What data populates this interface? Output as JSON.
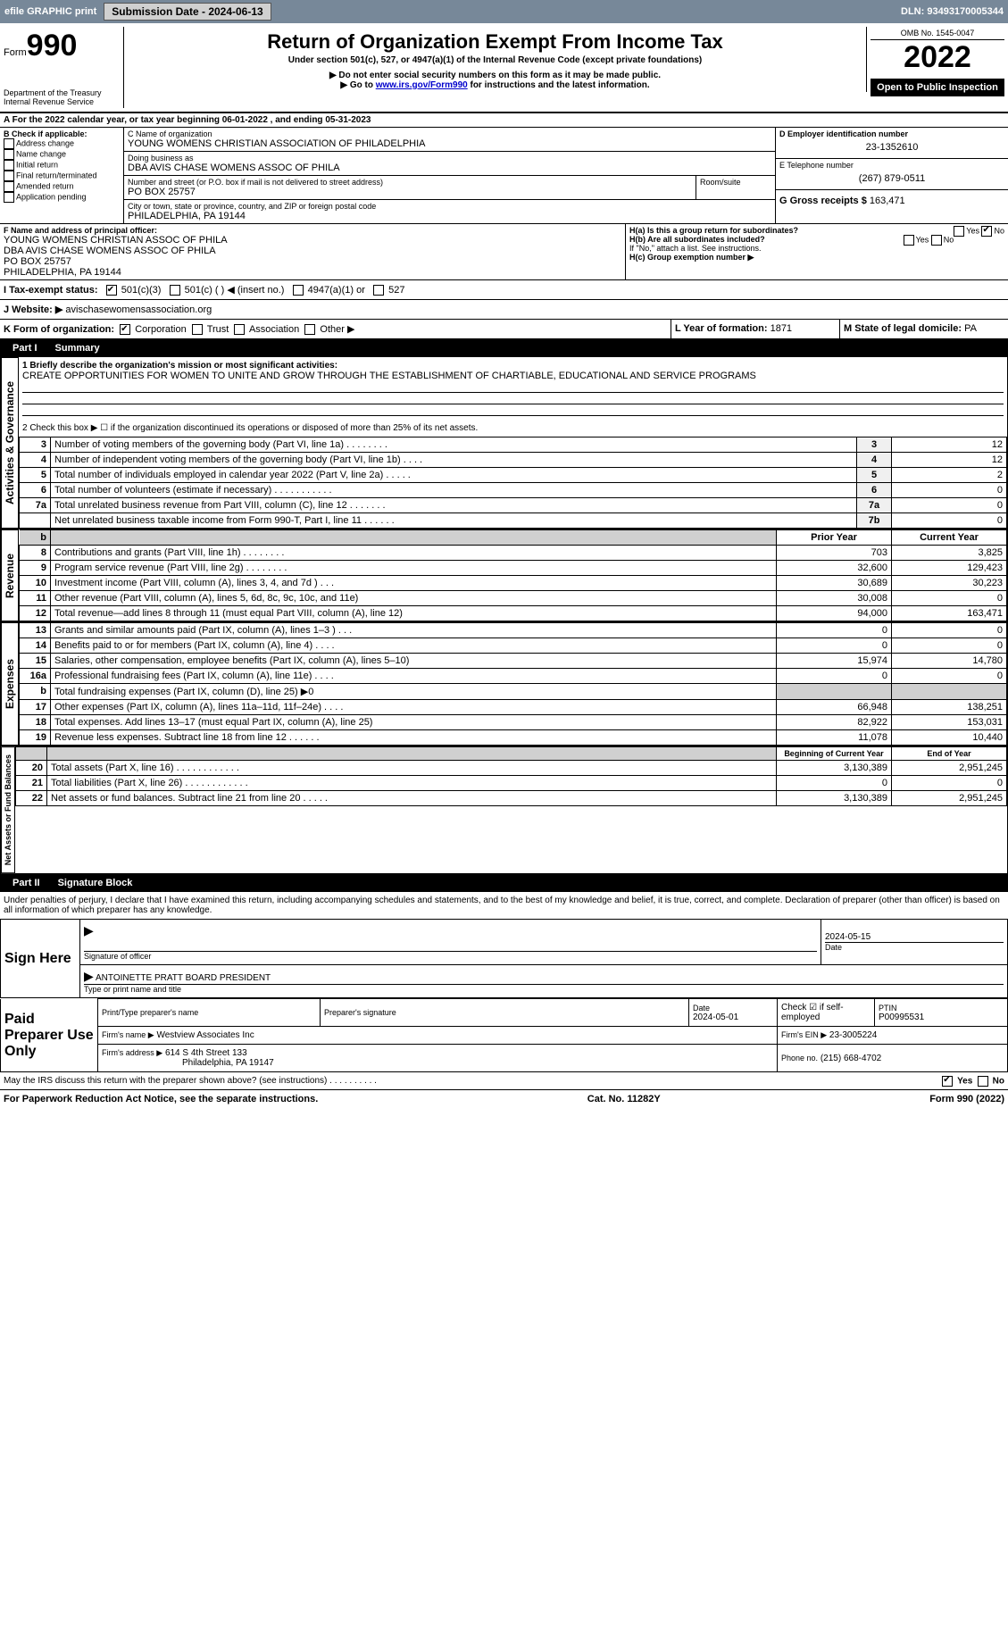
{
  "top_bar": {
    "efile": "efile GRAPHIC print",
    "submission_btn": "Submission Date - 2024-06-13",
    "dln": "DLN: 93493170005344"
  },
  "header": {
    "form_word": "Form",
    "form_num": "990",
    "title": "Return of Organization Exempt From Income Tax",
    "sub1": "Under section 501(c), 527, or 4947(a)(1) of the Internal Revenue Code (except private foundations)",
    "sub2": "▶ Do not enter social security numbers on this form as it may be made public.",
    "sub3_pre": "▶ Go to ",
    "sub3_link": "www.irs.gov/Form990",
    "sub3_post": " for instructions and the latest information.",
    "dept": "Department of the Treasury",
    "irs": "Internal Revenue Service",
    "omb": "OMB No. 1545-0047",
    "year": "2022",
    "open": "Open to Public Inspection"
  },
  "period": {
    "line_a": "A For the 2022 calendar year, or tax year beginning 06-01-2022     , and ending 05-31-2023"
  },
  "box_b": {
    "title": "B Check if applicable:",
    "opts": [
      "Address change",
      "Name change",
      "Initial return",
      "Final return/terminated",
      "Amended return",
      "Application pending"
    ]
  },
  "box_c": {
    "label_c": "C Name of organization",
    "org": "YOUNG WOMENS CHRISTIAN ASSOCIATION OF PHILADELPHIA",
    "dba_label": "Doing business as",
    "dba": "DBA AVIS CHASE WOMENS ASSOC OF PHILA",
    "addr_label": "Number and street (or P.O. box if mail is not delivered to street address)",
    "room_label": "Room/suite",
    "addr": "PO BOX 25757",
    "city_label": "City or town, state or province, country, and ZIP or foreign postal code",
    "city": "PHILADELPHIA, PA  19144"
  },
  "box_d": {
    "label": "D Employer identification number",
    "val": "23-1352610"
  },
  "box_e": {
    "label": "E Telephone number",
    "val": "(267) 879-0511"
  },
  "box_g": {
    "label": "G Gross receipts $",
    "val": "163,471"
  },
  "box_f": {
    "label": "F  Name and address of principal officer:",
    "l1": "YOUNG WOMENS CHRISTIAN ASSOC OF PHILA",
    "l2": "DBA AVIS CHASE WOMENS ASSOC OF PHILA",
    "l3": "PO BOX 25757",
    "l4": "PHILADELPHIA, PA  19144"
  },
  "box_h": {
    "ha": "H(a)  Is this a group return for subordinates?",
    "hb": "H(b)  Are all subordinates included?",
    "hb_note": "If \"No,\" attach a list. See instructions.",
    "hc": "H(c)  Group exemption number ▶",
    "yes": "Yes",
    "no": "No"
  },
  "box_i": {
    "label": "I  Tax-exempt status:",
    "o1": "501(c)(3)",
    "o2": "501(c) (   ) ◀ (insert no.)",
    "o3": "4947(a)(1) or",
    "o4": "527"
  },
  "box_j": {
    "label": "J  Website: ▶",
    "val": " avischasewomensassociation.org"
  },
  "box_k": {
    "label": "K Form of organization:",
    "o1": "Corporation",
    "o2": "Trust",
    "o3": "Association",
    "o4": "Other ▶"
  },
  "box_l": {
    "label": "L Year of formation:",
    "val": "1871"
  },
  "box_m": {
    "label": "M State of legal domicile:",
    "val": "PA"
  },
  "part1": {
    "title": "Part I",
    "name": "Summary",
    "q1": "1  Briefly describe the organization's mission or most significant activities:",
    "q1_ans": "CREATE OPPORTUNITIES FOR WOMEN TO UNITE AND GROW THROUGH THE ESTABLISHMENT OF CHARTIABLE, EDUCATIONAL AND SERVICE PROGRAMS",
    "q2": "2  Check this box ▶ ☐  if the organization discontinued its operations or disposed of more than 25% of its net assets.",
    "rows_top": [
      {
        "n": "3",
        "d": "Number of voting members of the governing body (Part VI, line 1a)   .    .    .    .    .    .    .    .",
        "b": "3",
        "v": "12"
      },
      {
        "n": "4",
        "d": "Number of independent voting members of the governing body (Part VI, line 1b)   .    .    .    .",
        "b": "4",
        "v": "12"
      },
      {
        "n": "5",
        "d": "Total number of individuals employed in calendar year 2022 (Part V, line 2a)   .    .    .    .    .",
        "b": "5",
        "v": "2"
      },
      {
        "n": "6",
        "d": "Total number of volunteers (estimate if necessary)    .    .    .    .    .    .    .    .    .    .    .",
        "b": "6",
        "v": "0"
      },
      {
        "n": "7a",
        "d": "Total unrelated business revenue from Part VIII, column (C), line 12   .    .    .    .    .    .    .",
        "b": "7a",
        "v": "0"
      },
      {
        "n": "",
        "d": "Net unrelated business taxable income from Form 990-T, Part I, line 11   .    .    .    .    .    .",
        "b": "7b",
        "v": "0"
      }
    ],
    "col_prior": "Prior Year",
    "col_current": "Current Year",
    "rev_rows": [
      {
        "n": "8",
        "d": "Contributions and grants (Part VIII, line 1h)   .    .    .    .    .    .    .    .",
        "p": "703",
        "c": "3,825"
      },
      {
        "n": "9",
        "d": "Program service revenue (Part VIII, line 2g)   .    .    .    .    .    .    .    .",
        "p": "32,600",
        "c": "129,423"
      },
      {
        "n": "10",
        "d": "Investment income (Part VIII, column (A), lines 3, 4, and 7d )   .    .    .",
        "p": "30,689",
        "c": "30,223"
      },
      {
        "n": "11",
        "d": "Other revenue (Part VIII, column (A), lines 5, 6d, 8c, 9c, 10c, and 11e)",
        "p": "30,008",
        "c": "0"
      },
      {
        "n": "12",
        "d": "Total revenue—add lines 8 through 11 (must equal Part VIII, column (A), line 12)",
        "p": "94,000",
        "c": "163,471"
      }
    ],
    "exp_rows": [
      {
        "n": "13",
        "d": "Grants and similar amounts paid (Part IX, column (A), lines 1–3 )   .    .    .",
        "p": "0",
        "c": "0"
      },
      {
        "n": "14",
        "d": "Benefits paid to or for members (Part IX, column (A), line 4)   .    .    .    .",
        "p": "0",
        "c": "0"
      },
      {
        "n": "15",
        "d": "Salaries, other compensation, employee benefits (Part IX, column (A), lines 5–10)",
        "p": "15,974",
        "c": "14,780"
      },
      {
        "n": "16a",
        "d": "Professional fundraising fees (Part IX, column (A), line 11e)   .    .    .    .",
        "p": "0",
        "c": "0"
      },
      {
        "n": "b",
        "d": "Total fundraising expenses (Part IX, column (D), line 25) ▶0",
        "p": "",
        "c": "",
        "shade": true
      },
      {
        "n": "17",
        "d": "Other expenses (Part IX, column (A), lines 11a–11d, 11f–24e)   .    .    .    .",
        "p": "66,948",
        "c": "138,251"
      },
      {
        "n": "18",
        "d": "Total expenses. Add lines 13–17 (must equal Part IX, column (A), line 25)",
        "p": "82,922",
        "c": "153,031"
      },
      {
        "n": "19",
        "d": "Revenue less expenses. Subtract line 18 from line 12   .    .    .    .    .    .",
        "p": "11,078",
        "c": "10,440"
      }
    ],
    "col_begin": "Beginning of Current Year",
    "col_end": "End of Year",
    "net_rows": [
      {
        "n": "20",
        "d": "Total assets (Part X, line 16)   .    .    .    .    .    .    .    .    .    .    .    .",
        "p": "3,130,389",
        "c": "2,951,245"
      },
      {
        "n": "21",
        "d": "Total liabilities (Part X, line 26)   .    .    .    .    .    .    .    .    .    .    .    .",
        "p": "0",
        "c": "0"
      },
      {
        "n": "22",
        "d": "Net assets or fund balances. Subtract line 21 from line 20   .    .    .    .    .",
        "p": "3,130,389",
        "c": "2,951,245"
      }
    ],
    "vlab_gov": "Activities & Governance",
    "vlab_rev": "Revenue",
    "vlab_exp": "Expenses",
    "vlab_net": "Net Assets or Fund Balances"
  },
  "part2": {
    "title": "Part II",
    "name": "Signature Block",
    "decl": "Under penalties of perjury, I declare that I have examined this return, including accompanying schedules and statements, and to the best of my knowledge and belief, it is true, correct, and complete. Declaration of preparer (other than officer) is based on all information of which preparer has any knowledge.",
    "sign_here": "Sign Here",
    "sig_officer": "Signature of officer",
    "date": "Date",
    "date_val": "2024-05-15",
    "name_title": "ANTOINETTE PRATT  BOARD PRESIDENT",
    "type_name": "Type or print name and title",
    "paid": "Paid Preparer Use Only",
    "prep_name_lbl": "Print/Type preparer's name",
    "prep_sig_lbl": "Preparer's signature",
    "prep_date_lbl": "Date",
    "prep_date_val": "2024-05-01",
    "check_if": "Check ☑ if self-employed",
    "ptin_lbl": "PTIN",
    "ptin_val": "P00995531",
    "firm_name_lbl": "Firm's name     ▶",
    "firm_name": "Westview Associates Inc",
    "firm_ein_lbl": "Firm's EIN ▶",
    "firm_ein": "23-3005224",
    "firm_addr_lbl": "Firm's address ▶",
    "firm_addr1": "614 S 4th Street 133",
    "firm_addr2": "Philadelphia, PA  19147",
    "phone_lbl": "Phone no.",
    "phone": "(215) 668-4702",
    "may_irs": "May the IRS discuss this return with the preparer shown above? (see instructions)   .    .    .    .    .    .    .    .    .    .",
    "yes": "Yes",
    "no": "No"
  },
  "footer": {
    "left": "For Paperwork Reduction Act Notice, see the separate instructions.",
    "mid": "Cat. No. 11282Y",
    "right": "Form 990 (2022)"
  },
  "colors": {
    "topbar": "#778899",
    "black": "#000000",
    "link": "#0000cc",
    "shade": "#d0d0d0"
  }
}
